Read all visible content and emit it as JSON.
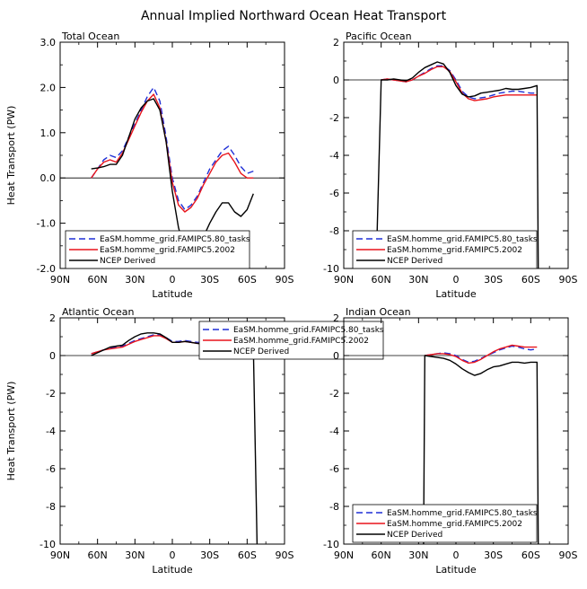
{
  "title": "Annual Implied Northward Ocean Heat Transport",
  "series_styles": [
    {
      "name": "EaSM.homme_grid.FAMIPC5.80_tasks",
      "color": "#1f2fd6",
      "dash": "7,4"
    },
    {
      "name": "EaSM.homme_grid.FAMIPC5.2002",
      "color": "#e8141b",
      "dash": ""
    },
    {
      "name": "NCEP Derived",
      "color": "#000000",
      "dash": ""
    }
  ],
  "chart_data": [
    {
      "type": "line",
      "title": "Total Ocean",
      "xlabel": "Latitude",
      "ylabel": "Heat Transport (PW)",
      "xticks": [
        "90N",
        "60N",
        "30N",
        "0",
        "30S",
        "60S",
        "90S"
      ],
      "xtick_values": [
        90,
        60,
        30,
        0,
        -30,
        -60,
        -90
      ],
      "xlim": [
        90,
        -90
      ],
      "ylim": [
        -2.0,
        3.0
      ],
      "yticks": [
        "-2.0",
        "-1.0",
        "0.0",
        "1.0",
        "2.0",
        "3.0"
      ],
      "ytick_values": [
        -2,
        -1,
        0,
        1,
        2,
        3
      ],
      "legend": "bottom-left",
      "series": [
        {
          "name": "EaSM.homme_grid.FAMIPC5.80_tasks",
          "x": [
            65,
            60,
            55,
            50,
            45,
            40,
            35,
            30,
            25,
            20,
            15,
            10,
            5,
            0,
            -5,
            -10,
            -15,
            -20,
            -25,
            -30,
            -35,
            -40,
            -45,
            -50,
            -55,
            -60,
            -65
          ],
          "y": [
            0.0,
            0.2,
            0.4,
            0.5,
            0.45,
            0.6,
            0.9,
            1.2,
            1.5,
            1.8,
            2.0,
            1.7,
            0.9,
            0.0,
            -0.5,
            -0.7,
            -0.6,
            -0.4,
            -0.1,
            0.2,
            0.4,
            0.6,
            0.7,
            0.5,
            0.25,
            0.1,
            0.15
          ]
        },
        {
          "name": "EaSM.homme_grid.FAMIPC5.2002",
          "x": [
            65,
            60,
            55,
            50,
            45,
            40,
            35,
            30,
            25,
            20,
            15,
            10,
            5,
            0,
            -5,
            -10,
            -15,
            -20,
            -25,
            -30,
            -35,
            -40,
            -45,
            -50,
            -55,
            -60,
            -65
          ],
          "y": [
            0.0,
            0.2,
            0.35,
            0.4,
            0.35,
            0.55,
            0.85,
            1.15,
            1.45,
            1.7,
            1.85,
            1.55,
            0.8,
            -0.1,
            -0.6,
            -0.75,
            -0.65,
            -0.45,
            -0.15,
            0.1,
            0.35,
            0.5,
            0.55,
            0.35,
            0.1,
            0.0,
            0.0
          ]
        },
        {
          "name": "NCEP Derived",
          "x": [
            65,
            60,
            55,
            50,
            45,
            40,
            35,
            30,
            25,
            20,
            15,
            10,
            5,
            0,
            -5,
            -10,
            -15,
            -20,
            -25,
            -30,
            -35,
            -40,
            -45,
            -50,
            -55,
            -60,
            -65
          ],
          "y": [
            0.2,
            0.22,
            0.25,
            0.3,
            0.3,
            0.5,
            0.9,
            1.3,
            1.55,
            1.7,
            1.75,
            1.5,
            0.8,
            -0.3,
            -1.1,
            -1.6,
            -1.6,
            -1.45,
            -1.3,
            -1.0,
            -0.75,
            -0.55,
            -0.55,
            -0.75,
            -0.85,
            -0.7,
            -0.35
          ]
        }
      ]
    },
    {
      "type": "line",
      "title": "Pacific Ocean",
      "xlabel": "Latitude",
      "ylabel": "",
      "xticks": [
        "90N",
        "60N",
        "30N",
        "0",
        "30S",
        "60S",
        "90S"
      ],
      "xtick_values": [
        90,
        60,
        30,
        0,
        -30,
        -60,
        -90
      ],
      "xlim": [
        90,
        -90
      ],
      "ylim": [
        -10,
        2
      ],
      "yticks": [
        "-10",
        "-8",
        "-6",
        "-4",
        "-2",
        "0",
        "2"
      ],
      "ytick_values": [
        -10,
        -8,
        -6,
        -4,
        -2,
        0,
        2
      ],
      "legend": "bottom",
      "series": [
        {
          "name": "EaSM.homme_grid.FAMIPC5.80_tasks",
          "x": [
            60,
            55,
            50,
            45,
            40,
            35,
            30,
            25,
            20,
            15,
            10,
            5,
            0,
            -5,
            -10,
            -15,
            -20,
            -25,
            -30,
            -35,
            -40,
            -45,
            -50,
            -55,
            -60,
            -65
          ],
          "y": [
            0.0,
            0.05,
            0.0,
            -0.05,
            -0.1,
            0.0,
            0.2,
            0.4,
            0.6,
            0.75,
            0.75,
            0.5,
            0.0,
            -0.6,
            -0.9,
            -1.0,
            -0.95,
            -0.9,
            -0.8,
            -0.7,
            -0.65,
            -0.6,
            -0.6,
            -0.65,
            -0.7,
            -0.7
          ]
        },
        {
          "name": "EaSM.homme_grid.FAMIPC5.2002",
          "x": [
            60,
            55,
            50,
            45,
            40,
            35,
            30,
            25,
            20,
            15,
            10,
            5,
            0,
            -5,
            -10,
            -15,
            -20,
            -25,
            -30,
            -35,
            -40,
            -45,
            -50,
            -55,
            -60,
            -65
          ],
          "y": [
            0.0,
            0.05,
            0.0,
            -0.05,
            -0.1,
            0.0,
            0.2,
            0.35,
            0.55,
            0.7,
            0.7,
            0.45,
            -0.1,
            -0.7,
            -1.0,
            -1.1,
            -1.05,
            -1.0,
            -0.9,
            -0.85,
            -0.8,
            -0.8,
            -0.8,
            -0.8,
            -0.8,
            -0.8
          ]
        },
        {
          "name": "NCEP Derived",
          "x": [
            64,
            60,
            55,
            50,
            45,
            40,
            35,
            30,
            25,
            20,
            15,
            10,
            5,
            0,
            -5,
            -10,
            -15,
            -20,
            -25,
            -30,
            -35,
            -40,
            -45,
            -50,
            -55,
            -60,
            -65,
            -66
          ],
          "y": [
            -10,
            0.0,
            0.0,
            0.05,
            0.0,
            -0.05,
            0.1,
            0.4,
            0.65,
            0.8,
            0.95,
            0.85,
            0.4,
            -0.3,
            -0.75,
            -0.9,
            -0.85,
            -0.7,
            -0.65,
            -0.6,
            -0.55,
            -0.45,
            -0.5,
            -0.5,
            -0.45,
            -0.4,
            -0.3,
            -10
          ]
        }
      ]
    },
    {
      "type": "line",
      "title": "Atlantic Ocean",
      "xlabel": "Latitude",
      "ylabel": "Heat Transport (PW)",
      "xticks": [
        "90N",
        "60N",
        "30N",
        "0",
        "30S",
        "60S",
        "90S"
      ],
      "xtick_values": [
        90,
        60,
        30,
        0,
        -30,
        -60,
        -90
      ],
      "xlim": [
        90,
        -90
      ],
      "ylim": [
        -10,
        2
      ],
      "yticks": [
        "-10",
        "-8",
        "-6",
        "-4",
        "-2",
        "0",
        "2"
      ],
      "ytick_values": [
        -10,
        -8,
        -6,
        -4,
        -2,
        0,
        2
      ],
      "legend": "top",
      "series": [
        {
          "name": "EaSM.homme_grid.FAMIPC5.80_tasks",
          "x": [
            65,
            60,
            55,
            50,
            45,
            40,
            35,
            30,
            25,
            20,
            15,
            10,
            5,
            0,
            -5,
            -10,
            -15,
            -20,
            -25,
            -30,
            -35,
            -40,
            -45,
            -50,
            -55,
            -60,
            -65
          ],
          "y": [
            0.1,
            0.2,
            0.3,
            0.4,
            0.45,
            0.5,
            0.65,
            0.8,
            0.9,
            1.0,
            1.1,
            1.1,
            0.95,
            0.75,
            0.75,
            0.8,
            0.75,
            0.7,
            0.7,
            0.7,
            0.7,
            0.75,
            0.7,
            0.65,
            0.6,
            0.55,
            0.5
          ]
        },
        {
          "name": "EaSM.homme_grid.FAMIPC5.2002",
          "x": [
            65,
            60,
            55,
            50,
            45,
            40,
            35,
            30,
            25,
            20,
            15,
            10,
            5,
            0,
            -5,
            -10,
            -15,
            -20,
            -25,
            -30,
            -35,
            -40,
            -45,
            -50,
            -55,
            -60,
            -65
          ],
          "y": [
            0.1,
            0.2,
            0.3,
            0.35,
            0.4,
            0.45,
            0.6,
            0.75,
            0.85,
            0.95,
            1.05,
            1.05,
            0.9,
            0.7,
            0.7,
            0.75,
            0.7,
            0.65,
            0.65,
            0.65,
            0.65,
            0.7,
            0.65,
            0.6,
            0.55,
            0.5,
            0.45
          ]
        },
        {
          "name": "NCEP Derived",
          "x": [
            65,
            60,
            55,
            50,
            45,
            40,
            35,
            30,
            25,
            20,
            15,
            10,
            5,
            0,
            -5,
            -10,
            -15,
            -20,
            -25,
            -30,
            -35,
            -40,
            -45,
            -50,
            -55,
            -60,
            -65,
            -68
          ],
          "y": [
            0.0,
            0.15,
            0.3,
            0.45,
            0.5,
            0.55,
            0.8,
            1.0,
            1.15,
            1.2,
            1.2,
            1.15,
            0.95,
            0.7,
            0.7,
            0.75,
            0.7,
            0.65,
            0.6,
            0.65,
            0.6,
            0.7,
            0.65,
            0.55,
            0.45,
            0.45,
            0.4,
            -10
          ]
        }
      ]
    },
    {
      "type": "line",
      "title": "Indian Ocean",
      "xlabel": "Latitude",
      "ylabel": "",
      "xticks": [
        "90N",
        "60N",
        "30N",
        "0",
        "30S",
        "60S",
        "90S"
      ],
      "xtick_values": [
        90,
        60,
        30,
        0,
        -30,
        -60,
        -90
      ],
      "xlim": [
        90,
        -90
      ],
      "ylim": [
        -10,
        2
      ],
      "yticks": [
        "-10",
        "-8",
        "-6",
        "-4",
        "-2",
        "0",
        "2"
      ],
      "ytick_values": [
        -10,
        -8,
        -6,
        -4,
        -2,
        0,
        2
      ],
      "legend": "bottom",
      "series": [
        {
          "name": "EaSM.homme_grid.FAMIPC5.80_tasks",
          "x": [
            25,
            20,
            15,
            10,
            5,
            0,
            -5,
            -10,
            -15,
            -20,
            -25,
            -30,
            -35,
            -40,
            -45,
            -50,
            -55,
            -60,
            -65
          ],
          "y": [
            0.0,
            0.05,
            0.1,
            0.15,
            0.1,
            0.0,
            -0.2,
            -0.35,
            -0.3,
            -0.15,
            0.0,
            0.15,
            0.3,
            0.4,
            0.5,
            0.45,
            0.35,
            0.3,
            0.35
          ]
        },
        {
          "name": "EaSM.homme_grid.FAMIPC5.2002",
          "x": [
            25,
            20,
            15,
            10,
            5,
            0,
            -5,
            -10,
            -15,
            -20,
            -25,
            -30,
            -35,
            -40,
            -45,
            -50,
            -55,
            -60,
            -65
          ],
          "y": [
            0.0,
            0.05,
            0.1,
            0.1,
            0.05,
            -0.05,
            -0.25,
            -0.4,
            -0.35,
            -0.2,
            0.0,
            0.2,
            0.35,
            0.45,
            0.55,
            0.5,
            0.45,
            0.45,
            0.45
          ]
        },
        {
          "name": "NCEP Derived",
          "x": [
            26,
            25,
            20,
            15,
            10,
            5,
            0,
            -5,
            -10,
            -15,
            -20,
            -25,
            -30,
            -35,
            -40,
            -45,
            -50,
            -55,
            -60,
            -65,
            -66
          ],
          "y": [
            -10,
            0.0,
            -0.05,
            -0.1,
            -0.15,
            -0.25,
            -0.45,
            -0.7,
            -0.9,
            -1.05,
            -0.95,
            -0.75,
            -0.6,
            -0.55,
            -0.45,
            -0.35,
            -0.35,
            -0.4,
            -0.35,
            -0.35,
            -10
          ]
        }
      ]
    }
  ]
}
